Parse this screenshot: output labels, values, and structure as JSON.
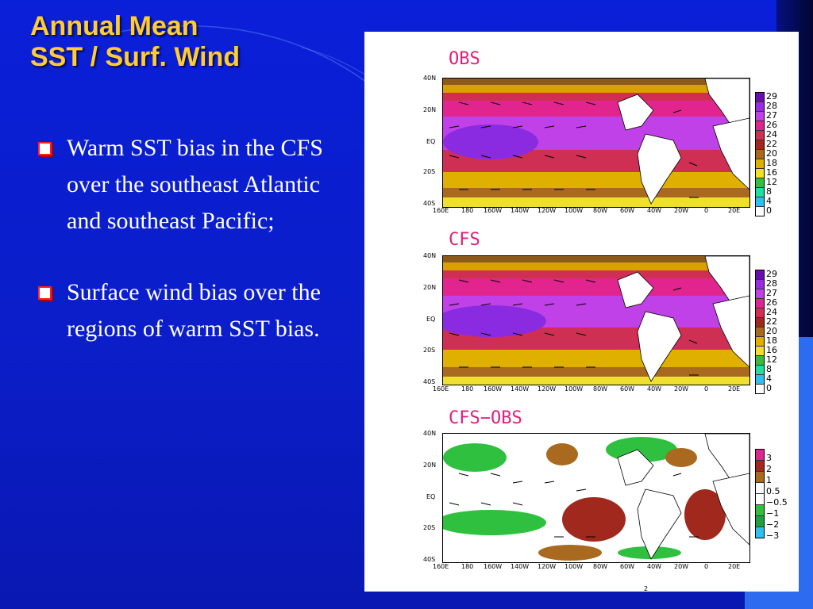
{
  "slide": {
    "title_line1": "Annual Mean",
    "title_line2": "SST / Surf. Wind",
    "bullets": [
      "Warm SST bias in the CFS over the southeast Atlantic and southeast Pacific;",
      "Surface wind bias over the regions of warm SST bias."
    ]
  },
  "colors": {
    "title": "#ffcc33",
    "background": "#0b1ec9",
    "accent": "#2d6cf0"
  },
  "figure": {
    "panels": [
      {
        "title": "OBS",
        "legend": [
          "29",
          "28",
          "27",
          "26",
          "24",
          "22",
          "20",
          "18",
          "16",
          "12",
          "8",
          "4",
          "0"
        ]
      },
      {
        "title": "CFS",
        "legend": [
          "29",
          "28",
          "27",
          "26",
          "24",
          "22",
          "20",
          "18",
          "16",
          "12",
          "8",
          "4",
          "0"
        ]
      },
      {
        "title": "CFS−OBS",
        "legend": [
          "3",
          "2",
          "1",
          "0.5",
          "−0.5",
          "−1",
          "−2",
          "−3"
        ]
      }
    ],
    "lat_labels": [
      "40N",
      "20N",
      "EQ",
      "20S",
      "40S"
    ],
    "lon_labels": [
      "160E",
      "180",
      "160W",
      "140W",
      "120W",
      "100W",
      "80W",
      "60W",
      "40W",
      "20W",
      "0",
      "20E"
    ],
    "footer_mark": "2"
  }
}
